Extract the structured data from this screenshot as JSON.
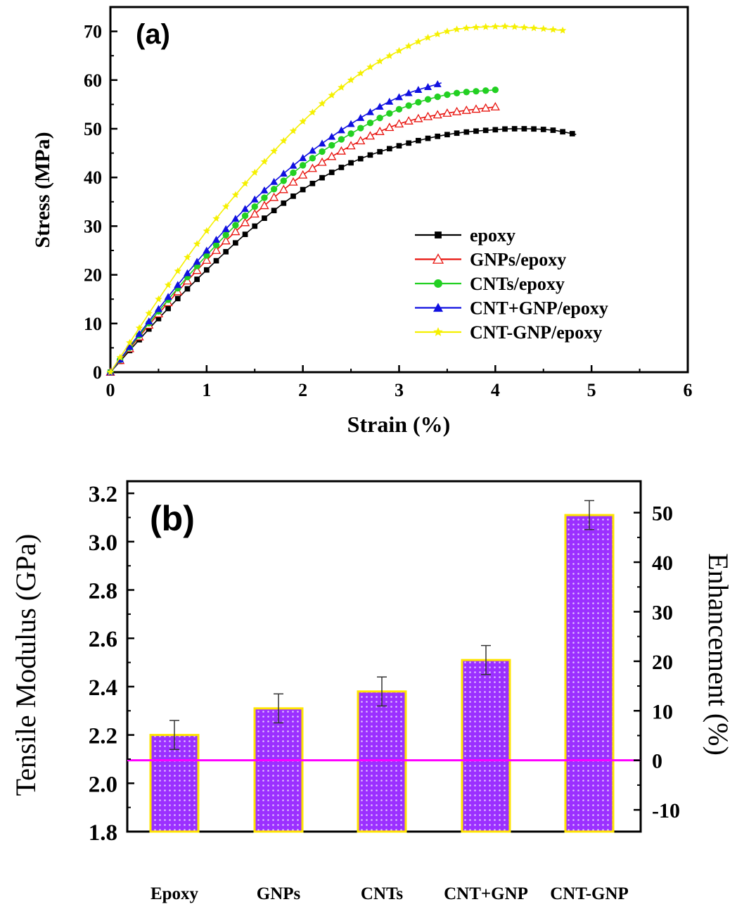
{
  "colors": {
    "epoxy": "#000000",
    "gnps": "#e8140f",
    "cnts": "#22d022",
    "cnt_plus_gnp": "#1010e0",
    "cnt_gnp": "#f5f000",
    "bar_fill": "#9b30ff",
    "bar_edge": "#ffe400",
    "baseline": "#ff00ff",
    "axis": "#000000"
  },
  "chart_data": [
    {
      "type": "line",
      "panel_label": "(a)",
      "xlabel": "Strain (%)",
      "ylabel": "Stress (MPa)",
      "xlim": [
        0,
        6
      ],
      "ylim": [
        0,
        75
      ],
      "xticks": [
        0,
        1,
        2,
        3,
        4,
        5,
        6
      ],
      "yticks": [
        0,
        10,
        20,
        30,
        40,
        50,
        60,
        70
      ],
      "legend_position": "lower-right",
      "series": [
        {
          "name": "epoxy",
          "marker": "square",
          "color_key": "epoxy",
          "x": [
            0,
            0.5,
            1,
            1.5,
            2,
            2.5,
            3,
            3.5,
            4,
            4.3,
            4.6,
            4.85
          ],
          "y": [
            0,
            11,
            21,
            30,
            37.5,
            43,
            46.5,
            48.8,
            49.8,
            50,
            49.7,
            48.8
          ]
        },
        {
          "name": "GNPs/epoxy",
          "marker": "triangle-open",
          "color_key": "gnps",
          "x": [
            0,
            0.5,
            1,
            1.5,
            2,
            2.5,
            3,
            3.5,
            4
          ],
          "y": [
            0,
            12,
            23,
            32.5,
            40.5,
            46.5,
            51,
            53.2,
            54.5
          ]
        },
        {
          "name": "CNTs/epoxy",
          "marker": "circle",
          "color_key": "cnts",
          "x": [
            0,
            0.5,
            1,
            1.5,
            2,
            2.5,
            3,
            3.5,
            4
          ],
          "y": [
            0,
            12.5,
            24,
            34,
            42.5,
            49,
            54,
            57,
            58
          ]
        },
        {
          "name": "CNT+GNP/epoxy",
          "marker": "triangle",
          "color_key": "cnt_plus_gnp",
          "x": [
            0,
            0.5,
            1,
            1.5,
            2,
            2.5,
            3,
            3.45
          ],
          "y": [
            0,
            13,
            25,
            35.5,
            44,
            51,
            56.5,
            59.5
          ]
        },
        {
          "name": "CNT-GNP/epoxy",
          "marker": "star",
          "color_key": "cnt_gnp",
          "x": [
            0,
            0.5,
            1,
            1.5,
            2,
            2.5,
            3,
            3.5,
            4,
            4.3,
            4.7
          ],
          "y": [
            0,
            15,
            29,
            41,
            51.5,
            60,
            66,
            70,
            71,
            70.8,
            70.2
          ]
        }
      ]
    },
    {
      "type": "bar",
      "panel_label": "(b)",
      "categories": [
        "Epoxy",
        "GNPs",
        "CNTs",
        "CNT+GNP",
        "CNT-GNP"
      ],
      "values": [
        2.2,
        2.31,
        2.38,
        2.51,
        3.11
      ],
      "errors": [
        0.06,
        0.06,
        0.06,
        0.06,
        0.06
      ],
      "ylabel": "Tensile Modulus (GPa)",
      "ylim": [
        1.8,
        3.25
      ],
      "yticks": [
        "1.8",
        "2.0",
        "2.2",
        "2.4",
        "2.6",
        "2.8",
        "3.0",
        "3.2"
      ],
      "y2label": "Enhancement (%)",
      "y2ticks": [
        "-10",
        "0",
        "10",
        "20",
        "30",
        "40",
        "50"
      ],
      "y2_values": [
        -10,
        0,
        10,
        20,
        30,
        40,
        50
      ],
      "y2_at_modulus": [
        1.89,
        2.095,
        2.3,
        2.505,
        2.71,
        2.915,
        3.12
      ],
      "baseline_value": 2.095
    }
  ]
}
